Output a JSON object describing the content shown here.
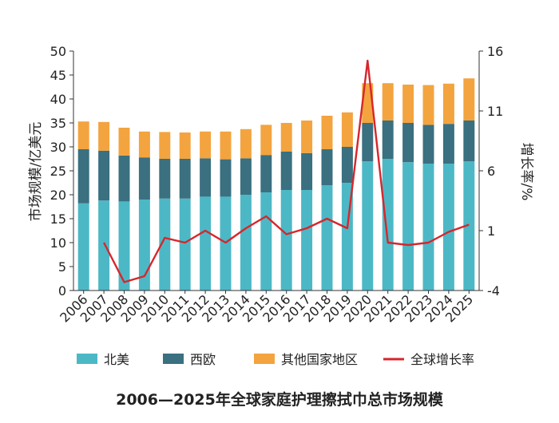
{
  "chart_data": {
    "type": "bar",
    "stacked": true,
    "title": "2006—2025年全球家庭护理擦拭巾总市场规模",
    "ylabel_left": "市场规模/亿美元",
    "ylabel_right": "增长率/%",
    "ylim_left": [
      0,
      50
    ],
    "ylim_right": [
      -4,
      16
    ],
    "yticks_left": [
      "0",
      "5",
      "10",
      "15",
      "20",
      "25",
      "30",
      "35",
      "40",
      "45",
      "50"
    ],
    "yticks_right": [
      "-4",
      "1",
      "6",
      "11",
      "16"
    ],
    "categories": [
      "2006",
      "2007",
      "2008",
      "2009",
      "2010",
      "2011",
      "2012",
      "2013",
      "2014",
      "2015",
      "2016",
      "2017",
      "2018",
      "2019",
      "2020",
      "2021",
      "2022",
      "2023",
      "2024",
      "2025"
    ],
    "series": [
      {
        "name": "北美",
        "color": "#4cb8c6",
        "values": [
          18.2,
          18.8,
          18.6,
          19.0,
          19.2,
          19.2,
          19.6,
          19.6,
          20.0,
          20.5,
          21.0,
          21.0,
          22.0,
          22.5,
          27.0,
          27.5,
          26.8,
          26.5,
          26.5,
          27.0
        ]
      },
      {
        "name": "西欧",
        "color": "#3a7080",
        "values": [
          11.3,
          10.4,
          9.6,
          8.8,
          8.3,
          8.3,
          8.0,
          7.8,
          7.6,
          7.8,
          8.0,
          7.7,
          7.5,
          7.5,
          8.0,
          8.0,
          8.2,
          8.1,
          8.3,
          8.5
        ]
      },
      {
        "name": "其他国家地区",
        "color": "#f3a43f",
        "values": [
          5.8,
          6.0,
          5.8,
          5.4,
          5.6,
          5.5,
          5.6,
          5.8,
          6.1,
          6.3,
          6.0,
          6.8,
          7.0,
          7.2,
          8.3,
          7.8,
          8.0,
          8.3,
          8.4,
          8.8
        ]
      }
    ],
    "line": {
      "name": "全球增长率",
      "color": "#d7262b",
      "axis": "right",
      "values": [
        null,
        0.0,
        -3.3,
        -2.8,
        0.4,
        0.0,
        1.0,
        0.0,
        1.2,
        2.2,
        0.7,
        1.2,
        2.0,
        1.2,
        15.2,
        0.0,
        -0.2,
        0.0,
        0.9,
        1.5
      ]
    },
    "legend": {
      "position": "bottom",
      "items": [
        {
          "label": "北美",
          "type": "bar",
          "color": "#4cb8c6"
        },
        {
          "label": "西欧",
          "type": "bar",
          "color": "#3a7080"
        },
        {
          "label": "其他国家地区",
          "type": "bar",
          "color": "#f3a43f"
        },
        {
          "label": "全球增长率",
          "type": "line",
          "color": "#d7262b"
        }
      ]
    }
  }
}
